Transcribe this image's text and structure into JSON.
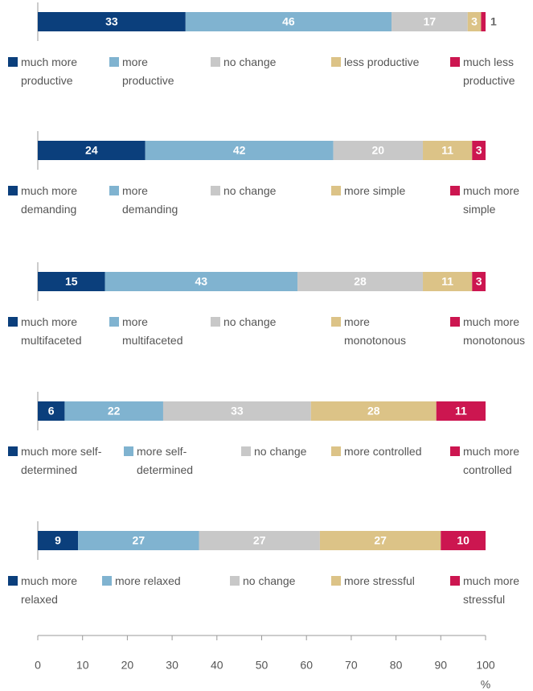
{
  "chart_data": [
    {
      "type": "bar",
      "stacked": true,
      "orientation": "horizontal",
      "xlim": [
        0,
        100
      ],
      "series": [
        {
          "name": "much more productive",
          "color": "#0b3f7c",
          "values": [
            33
          ]
        },
        {
          "name": "more productive",
          "color": "#80b3d0",
          "values": [
            46
          ]
        },
        {
          "name": "no change",
          "color": "#c8c8c8",
          "values": [
            17
          ]
        },
        {
          "name": "less productive",
          "color": "#dcc387",
          "values": [
            3
          ]
        },
        {
          "name": "much less productive",
          "color": "#cc1650",
          "values": [
            1
          ]
        }
      ]
    },
    {
      "type": "bar",
      "stacked": true,
      "orientation": "horizontal",
      "xlim": [
        0,
        100
      ],
      "series": [
        {
          "name": "much more demanding",
          "color": "#0b3f7c",
          "values": [
            24
          ]
        },
        {
          "name": "more demanding",
          "color": "#80b3d0",
          "values": [
            42
          ]
        },
        {
          "name": "no change",
          "color": "#c8c8c8",
          "values": [
            20
          ]
        },
        {
          "name": "more simple",
          "color": "#dcc387",
          "values": [
            11
          ]
        },
        {
          "name": "much more simple",
          "color": "#cc1650",
          "values": [
            3
          ]
        }
      ]
    },
    {
      "type": "bar",
      "stacked": true,
      "orientation": "horizontal",
      "xlim": [
        0,
        100
      ],
      "series": [
        {
          "name": "much more multifaceted",
          "color": "#0b3f7c",
          "values": [
            15
          ]
        },
        {
          "name": "more multifaceted",
          "color": "#80b3d0",
          "values": [
            43
          ]
        },
        {
          "name": "no change",
          "color": "#c8c8c8",
          "values": [
            28
          ]
        },
        {
          "name": "more monotonous",
          "color": "#dcc387",
          "values": [
            11
          ]
        },
        {
          "name": "much more monotonous",
          "color": "#cc1650",
          "values": [
            3
          ]
        }
      ]
    },
    {
      "type": "bar",
      "stacked": true,
      "orientation": "horizontal",
      "xlim": [
        0,
        100
      ],
      "series": [
        {
          "name": "much more self-determined",
          "color": "#0b3f7c",
          "values": [
            6
          ]
        },
        {
          "name": "more self-determined",
          "color": "#80b3d0",
          "values": [
            22
          ]
        },
        {
          "name": "no change",
          "color": "#c8c8c8",
          "values": [
            33
          ]
        },
        {
          "name": "more controlled",
          "color": "#dcc387",
          "values": [
            28
          ]
        },
        {
          "name": "much more controlled",
          "color": "#cc1650",
          "values": [
            11
          ]
        }
      ]
    },
    {
      "type": "bar",
      "stacked": true,
      "orientation": "horizontal",
      "xlim": [
        0,
        100
      ],
      "series": [
        {
          "name": "much more relaxed",
          "color": "#0b3f7c",
          "values": [
            9
          ]
        },
        {
          "name": "more relaxed",
          "color": "#80b3d0",
          "values": [
            27
          ]
        },
        {
          "name": "no change",
          "color": "#c8c8c8",
          "values": [
            27
          ]
        },
        {
          "name": "more stressful",
          "color": "#dcc387",
          "values": [
            27
          ]
        },
        {
          "name": "much more stressful",
          "color": "#cc1650",
          "values": [
            10
          ]
        }
      ],
      "xticks": [
        0,
        10,
        20,
        30,
        40,
        50,
        60,
        70,
        80,
        90,
        100
      ],
      "xlabel": "%"
    }
  ]
}
